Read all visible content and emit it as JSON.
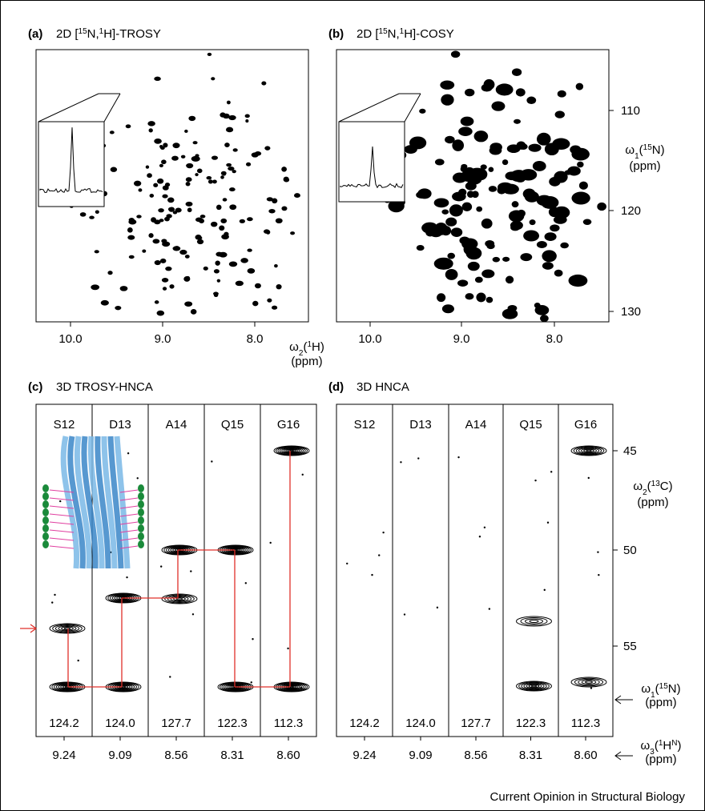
{
  "panels": [
    {
      "label": "(a)",
      "title": [
        "2D [",
        {
          "sup": "15"
        },
        "N,",
        {
          "sup": "1"
        },
        "H]-TROSY"
      ]
    },
    {
      "label": "(b)",
      "title": [
        "2D [",
        {
          "sup": "15"
        },
        "N,",
        {
          "sup": "1"
        },
        "H]-COSY"
      ]
    },
    {
      "label": "(c)",
      "title": [
        "3D TROSY-HNCA"
      ],
      "strips": [
        {
          "residue": "S12",
          "n15": "124.2",
          "h1": "9.24"
        },
        {
          "residue": "D13",
          "n15": "124.0",
          "h1": "9.09"
        },
        {
          "residue": "A14",
          "n15": "127.7",
          "h1": "8.56"
        },
        {
          "residue": "Q15",
          "n15": "122.3",
          "h1": "8.31"
        },
        {
          "residue": "G16",
          "n15": "112.3",
          "h1": "8.60"
        }
      ]
    },
    {
      "label": "(d)",
      "title": [
        "3D HNCA"
      ],
      "strips": [
        {
          "residue": "S12",
          "n15": "124.2",
          "h1": "9.24"
        },
        {
          "residue": "D13",
          "n15": "124.0",
          "h1": "9.09"
        },
        {
          "residue": "A14",
          "n15": "127.7",
          "h1": "8.56"
        },
        {
          "residue": "Q15",
          "n15": "122.3",
          "h1": "8.31"
        },
        {
          "residue": "G16",
          "n15": "112.3",
          "h1": "8.60"
        }
      ]
    }
  ],
  "axes_2d": {
    "x_ticks": [
      "10.0",
      "9.0",
      "8.0"
    ],
    "y_ticks": [
      "110",
      "120",
      "130"
    ],
    "x_label": [
      "ω",
      {
        "sub": "2"
      },
      "(",
      {
        "sup": "1"
      },
      "H)"
    ],
    "x_unit": "(ppm)",
    "y_label": [
      "ω",
      {
        "sub": "1"
      },
      "(",
      {
        "sup": "15"
      },
      "N)"
    ],
    "y_unit": "(ppm)"
  },
  "axes_3d": {
    "y_ticks": [
      "45",
      "50",
      "55"
    ],
    "y_label": [
      "ω",
      {
        "sub": "2"
      },
      "(",
      {
        "sup": "13"
      },
      "C)"
    ],
    "y_unit": "(ppm)",
    "n_label": [
      "ω",
      {
        "sub": "1"
      },
      "(",
      {
        "sup": "15"
      },
      "N)"
    ],
    "n_unit": "(ppm)",
    "h_label": [
      "ω",
      {
        "sub": "3"
      },
      "(",
      {
        "sup": "1"
      },
      "H",
      {
        "sup": "N"
      },
      ")"
    ],
    "h_unit": "(ppm)"
  },
  "footer": "Current Opinion in Structural Biology"
}
